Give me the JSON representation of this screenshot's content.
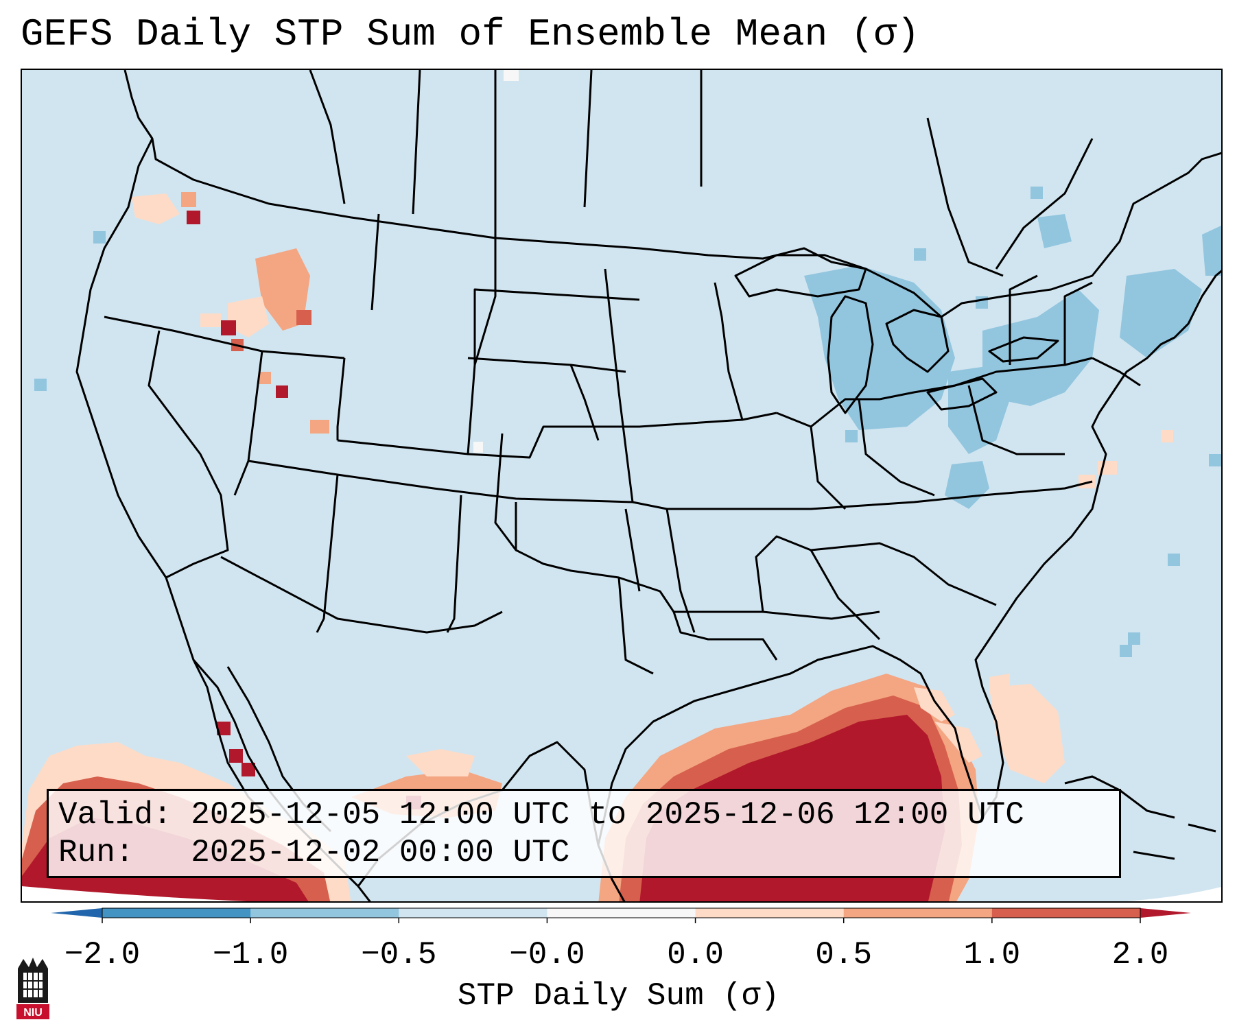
{
  "title": "GEFS Daily STP Sum of Ensemble Mean (σ)",
  "info": {
    "valid_line": "Valid: 2025-12-05 12:00 UTC to 2025-12-06 12:00 UTC",
    "run_line": "Run:   2025-12-02 00:00 UTC"
  },
  "colorbar": {
    "label": "STP Daily Sum (σ)",
    "ticks": [
      "−2.0",
      "−1.0",
      "−0.5",
      "−0.0",
      "0.0",
      "0.5",
      "1.0",
      "2.0"
    ],
    "colors": [
      "#4393c3",
      "#92c5de",
      "#d1e5f0",
      "#f7f7f7",
      "#fddbc7",
      "#f4a582",
      "#d6604d",
      "#b2182b"
    ],
    "under_color": "#2166ac",
    "over_color": "#b2182b"
  },
  "logo": {
    "text": "NIU"
  },
  "chart_data": {
    "type": "heatmap",
    "title": "GEFS Daily STP Sum of Ensemble Mean (σ)",
    "variable": "STP Daily Sum (σ)",
    "levels": [
      -2.0,
      -1.0,
      -0.5,
      -0.0,
      0.0,
      0.5,
      1.0,
      2.0
    ],
    "extend": "both",
    "regions": [
      {
        "area": "Gulf of Mexico",
        "level": "2.0"
      },
      {
        "area": "Southern Mexico / Pacific",
        "level": "2.0"
      },
      {
        "area": "Southeast coast (Florida, Georgia)",
        "level": "0.5"
      },
      {
        "area": "Pacific Northwest / Idaho",
        "level": "1.0"
      },
      {
        "area": "Great Lakes",
        "level": "-1.0"
      },
      {
        "area": "New York / New England",
        "level": "-1.0"
      },
      {
        "area": "Appalachians",
        "level": "-1.0"
      }
    ]
  }
}
